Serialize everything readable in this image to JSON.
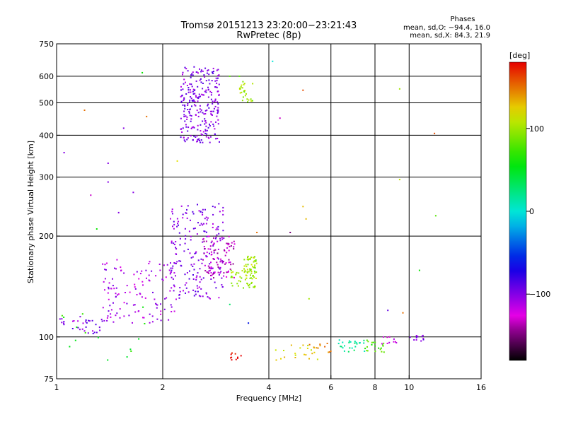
{
  "chart_data": {
    "type": "scatter",
    "title": "Tromsø 20151213 23:20:00−23:21:43",
    "subtitle": "RwPretec (8p)",
    "xlabel": "Frequency [MHz]",
    "ylabel": "Stationary phase Virtual Height [km]",
    "x_scale": "log",
    "y_scale": "log",
    "xlim": [
      1,
      16
    ],
    "ylim": [
      75,
      750
    ],
    "x_ticks": [
      "1",
      "2",
      "4",
      "6",
      "8",
      "10",
      "16"
    ],
    "x_tick_values": [
      1,
      2,
      4,
      6,
      8,
      10,
      16
    ],
    "y_ticks": [
      "75",
      "100",
      "200",
      "300",
      "400",
      "500",
      "600",
      "750"
    ],
    "y_tick_values": [
      75,
      100,
      200,
      300,
      400,
      500,
      600,
      750
    ],
    "x_grid": [
      2,
      4,
      6,
      8,
      10
    ],
    "y_grid": [
      100,
      200,
      300,
      400,
      500,
      600
    ],
    "phase_header": "Phases",
    "phase_stats": [
      "mean, sd,O: −94.4, 16.0",
      "mean, sd,X:  84.3, 21.9"
    ],
    "colorbar": {
      "label": "[deg]",
      "range": [
        -180,
        180
      ],
      "ticks": [
        "100",
        "0",
        "−100"
      ],
      "tick_values": [
        100,
        0,
        -100
      ]
    },
    "clusters": [
      {
        "f": [
          2.25,
          2.9
        ],
        "h": [
          380,
          640
        ],
        "phase": -100,
        "n": 260
      },
      {
        "f": [
          2.1,
          3.0
        ],
        "h": [
          130,
          250
        ],
        "phase": -100,
        "n": 200
      },
      {
        "f": [
          1.35,
          2.2
        ],
        "h": [
          110,
          170
        ],
        "phase": -110,
        "n": 130
      },
      {
        "f": [
          2.6,
          3.2
        ],
        "h": [
          150,
          200
        ],
        "phase": -130,
        "n": 90
      },
      {
        "f": [
          3.4,
          3.7
        ],
        "h": [
          140,
          175
        ],
        "phase": 100,
        "n": 70
      },
      {
        "f": [
          3.3,
          3.6
        ],
        "h": [
          500,
          580
        ],
        "phase": 100,
        "n": 25
      },
      {
        "f": [
          3.1,
          3.4
        ],
        "h": [
          140,
          160
        ],
        "phase": 100,
        "n": 20
      },
      {
        "f": [
          1.0,
          1.35
        ],
        "h": [
          102,
          115
        ],
        "phase": -100,
        "n": 35
      },
      {
        "f": [
          1.0,
          1.8
        ],
        "h": [
          85,
          130
        ],
        "phase": 60,
        "n": 15
      },
      {
        "f": [
          4.0,
          5.5
        ],
        "h": [
          85,
          95
        ],
        "phase": 120,
        "n": 20
      },
      {
        "f": [
          6.3,
          7.5
        ],
        "h": [
          90,
          98
        ],
        "phase": 20,
        "n": 25
      },
      {
        "f": [
          7.5,
          8.5
        ],
        "h": [
          90,
          98
        ],
        "phase": 75,
        "n": 20
      },
      {
        "f": [
          8.3,
          9.3
        ],
        "h": [
          95,
          100
        ],
        "phase": -120,
        "n": 10
      },
      {
        "f": [
          10.0,
          11.0
        ],
        "h": [
          97,
          101
        ],
        "phase": -100,
        "n": 12
      },
      {
        "f": [
          5.2,
          6.0
        ],
        "h": [
          88,
          96
        ],
        "phase": 140,
        "n": 12
      },
      {
        "f": [
          3.1,
          3.4
        ],
        "h": [
          85,
          90
        ],
        "phase": 180,
        "n": 10
      }
    ],
    "points": [
      {
        "f": 1.05,
        "h": 355,
        "phase": -100
      },
      {
        "f": 1.2,
        "h": 475,
        "phase": 150
      },
      {
        "f": 1.25,
        "h": 265,
        "phase": -130
      },
      {
        "f": 1.3,
        "h": 210,
        "phase": 60
      },
      {
        "f": 1.4,
        "h": 330,
        "phase": -100
      },
      {
        "f": 1.4,
        "h": 290,
        "phase": -100
      },
      {
        "f": 1.5,
        "h": 235,
        "phase": -100
      },
      {
        "f": 1.55,
        "h": 420,
        "phase": -100
      },
      {
        "f": 1.65,
        "h": 270,
        "phase": -100
      },
      {
        "f": 1.75,
        "h": 615,
        "phase": 60
      },
      {
        "f": 1.8,
        "h": 455,
        "phase": 150
      },
      {
        "f": 2.2,
        "h": 335,
        "phase": 120
      },
      {
        "f": 3.1,
        "h": 600,
        "phase": 80
      },
      {
        "f": 3.3,
        "h": 600,
        "phase": 80
      },
      {
        "f": 3.7,
        "h": 205,
        "phase": 150
      },
      {
        "f": 4.1,
        "h": 665,
        "phase": 0
      },
      {
        "f": 4.3,
        "h": 450,
        "phase": -130
      },
      {
        "f": 4.6,
        "h": 205,
        "phase": -150
      },
      {
        "f": 5.0,
        "h": 545,
        "phase": 160
      },
      {
        "f": 5.0,
        "h": 245,
        "phase": 130
      },
      {
        "f": 5.1,
        "h": 225,
        "phase": 130
      },
      {
        "f": 8.7,
        "h": 120,
        "phase": -90
      },
      {
        "f": 9.4,
        "h": 550,
        "phase": 100
      },
      {
        "f": 9.4,
        "h": 295,
        "phase": 110
      },
      {
        "f": 9.6,
        "h": 118,
        "phase": 150
      },
      {
        "f": 11.8,
        "h": 405,
        "phase": 160
      },
      {
        "f": 11.9,
        "h": 230,
        "phase": 80
      },
      {
        "f": 10.7,
        "h": 158,
        "phase": 60
      },
      {
        "f": 5.2,
        "h": 130,
        "phase": 100
      },
      {
        "f": 3.1,
        "h": 125,
        "phase": 30
      },
      {
        "f": 3.5,
        "h": 110,
        "phase": -60
      }
    ]
  }
}
